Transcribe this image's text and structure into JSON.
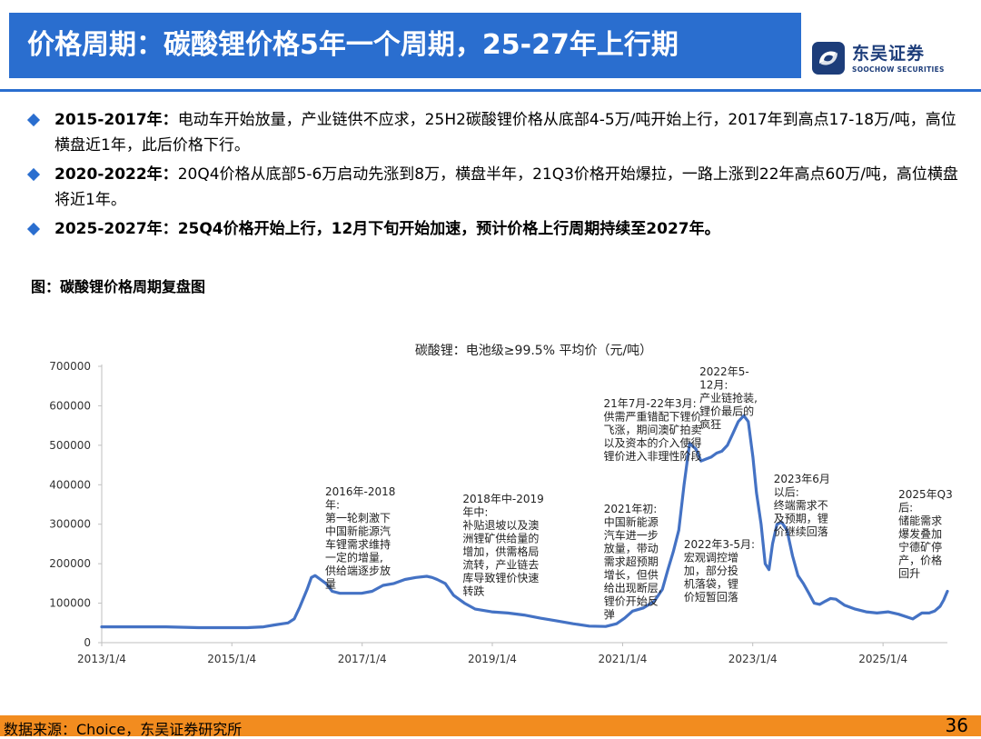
{
  "header": {
    "title": "价格周期：碳酸锂价格5年一个周期，25-27年上行期",
    "brand_cn": "东吴证券",
    "brand_en": "SOOCHOW SECURITIES",
    "accent": "#2a6ecf"
  },
  "bullets": [
    {
      "head": "2015-2017年：",
      "text": "电动车开始放量，产业链供不应求，25H2碳酸锂价格从底部4-5万/吨开始上行，2017年到高点17-18万/吨，高位横盘近1年，此后价格下行。"
    },
    {
      "head": "2020-2022年：",
      "text": "20Q4价格从底部5-6万启动先涨到8万，横盘半年，21Q3价格开始爆拉，一路上涨到22年高点60万/吨，高位横盘将近1年。"
    },
    {
      "head": "2025-2027年：",
      "text": "25Q4价格开始上行，12月下旬开始加速，预计价格上行周期持续至2027年。"
    }
  ],
  "figure_caption": "图：碳酸锂价格周期复盘图",
  "chart_data": {
    "type": "line",
    "title": "碳酸锂：电池级≥99.5% 平均价（元/吨）",
    "xlabel": "",
    "ylabel": "",
    "ylim": [
      0,
      700000
    ],
    "xlim": [
      "2013-01-04",
      "2025-12-31"
    ],
    "grid": false,
    "legend": "none",
    "line_color": "#4472c4",
    "yticks": [
      "0",
      "100000",
      "200000",
      "300000",
      "400000",
      "500000",
      "600000",
      "700000"
    ],
    "xticks": [
      "2013/1/4",
      "2015/1/4",
      "2017/1/4",
      "2019/1/4",
      "2021/1/4",
      "2023/1/4",
      "2025/1/4"
    ],
    "series": [
      {
        "x": [
          "2013-01-04",
          "2013-07-01",
          "2014-01-01",
          "2014-07-01",
          "2015-01-01",
          "2015-04-01",
          "2015-07-01",
          "2015-09-01",
          "2015-10-15",
          "2015-11-15",
          "2015-12-20",
          "2016-01-20",
          "2016-03-01",
          "2016-03-25",
          "2016-04-15",
          "2016-05-15",
          "2016-06-15",
          "2016-07-20",
          "2016-09-01",
          "2016-11-01",
          "2017-01-01",
          "2017-03-01",
          "2017-05-01",
          "2017-07-01",
          "2017-09-01",
          "2017-11-01",
          "2018-01-01",
          "2018-02-01",
          "2018-03-01",
          "2018-04-15",
          "2018-06-01",
          "2018-08-01",
          "2018-10-01",
          "2019-01-01",
          "2019-04-01",
          "2019-07-01",
          "2019-10-01",
          "2020-01-01",
          "2020-04-01",
          "2020-07-01",
          "2020-10-01",
          "2020-12-01",
          "2021-01-15",
          "2021-03-01",
          "2021-05-01",
          "2021-07-01",
          "2021-08-15",
          "2021-09-15",
          "2021-10-15",
          "2021-11-15",
          "2021-12-15",
          "2022-01-15",
          "2022-02-20",
          "2022-03-20",
          "2022-04-15",
          "2022-05-15",
          "2022-06-15",
          "2022-07-15",
          "2022-08-15",
          "2022-09-15",
          "2022-10-15",
          "2022-11-15",
          "2022-12-10",
          "2023-01-05",
          "2023-01-25",
          "2023-02-20",
          "2023-03-15",
          "2023-04-05",
          "2023-04-25",
          "2023-05-20",
          "2023-06-15",
          "2023-07-15",
          "2023-08-15",
          "2023-09-15",
          "2023-10-15",
          "2023-11-15",
          "2023-12-15",
          "2024-01-15",
          "2024-02-15",
          "2024-03-15",
          "2024-04-15",
          "2024-06-01",
          "2024-08-01",
          "2024-10-01",
          "2024-12-01",
          "2025-02-01",
          "2025-04-01",
          "2025-06-20",
          "2025-08-10",
          "2025-09-20",
          "2025-10-20",
          "2025-11-20",
          "2025-12-10",
          "2025-12-31"
        ],
        "y": [
          40000,
          40000,
          40000,
          38000,
          38000,
          38000,
          40000,
          45000,
          48000,
          50000,
          60000,
          90000,
          135000,
          165000,
          170000,
          160000,
          150000,
          130000,
          125000,
          125000,
          125000,
          130000,
          145000,
          150000,
          160000,
          165000,
          168000,
          165000,
          160000,
          150000,
          120000,
          100000,
          85000,
          78000,
          75000,
          70000,
          62000,
          55000,
          48000,
          42000,
          41000,
          48000,
          62000,
          80000,
          88000,
          105000,
          135000,
          185000,
          230000,
          285000,
          400000,
          505000,
          490000,
          460000,
          465000,
          470000,
          480000,
          485000,
          500000,
          530000,
          560000,
          575000,
          560000,
          470000,
          380000,
          300000,
          200000,
          185000,
          250000,
          300000,
          305000,
          285000,
          220000,
          170000,
          150000,
          125000,
          100000,
          97000,
          105000,
          112000,
          110000,
          95000,
          85000,
          78000,
          75000,
          78000,
          72000,
          60000,
          75000,
          75000,
          80000,
          92000,
          108000,
          130000
        ]
      }
    ],
    "annotations": [
      {
        "date": "2016-07-01",
        "text": "2016年-2018年：第一轮刺激下中国新能源汽车锂需求维持一定的增量，供给端逐步放量"
      },
      {
        "date": "2018-08-01",
        "text": "2018年中-2019年中：补贴退坡以及澳洲锂矿供给量的增加，供需格局流转，产业链去库导致锂价快速转跌"
      },
      {
        "date": "2020-12-01",
        "text": "2021年初：中国新能源汽车进一步放量，带动需求超预期增长，但供给出现断层，锂价开始反弹"
      },
      {
        "date": "2021-11-01",
        "text": "21年7月-22年3月：供需严重错配下锂价飞涨，期间澳矿拍卖以及资本的介入使得锂价进入非理性阶段"
      },
      {
        "date": "2022-09-01",
        "text": "2022年5-12月：产业链抢装，锂价最后的疯狂"
      },
      {
        "date": "2022-04-15",
        "text": "2022年3-5月：宏观调控增加，部分投机落袋，锂价短暂回落"
      },
      {
        "date": "2023-06-01",
        "text": "2023年6月以后：终端需求不及预期，锂价继续回落"
      },
      {
        "date": "2025-10-01",
        "text": "2025年Q3后：储能需求爆发叠加宁德矿停产，价格回升"
      }
    ]
  },
  "chart_annotations_lines": [
    [
      "2016年-2018",
      "年:",
      "第一轮刺激下",
      "中国新能源汽",
      "车锂需求维持",
      "一定的增量,",
      "供给端逐步放",
      "量"
    ],
    [
      "2018年中-2019",
      "年中:",
      "补贴退坡以及澳",
      "洲锂矿供给量的",
      "增加，供需格局",
      "流转，产业链去",
      "库导致锂价快速",
      "转跌"
    ],
    [
      "2021年初:",
      "中国新能源",
      "汽车进一步",
      "放量，带动",
      "需求超预期",
      "增长，但供",
      "给出现断层,",
      "锂价开始反",
      "弹"
    ],
    [
      "21年7月-22年3月:",
      "供需严重错配下锂价",
      "飞涨，期间澳矿拍卖",
      "以及资本的介入使得",
      "锂价进入非理性阶段"
    ],
    [
      "2022年5-",
      "12月:",
      "产业链抢装,",
      "锂价最后的",
      "疯狂"
    ],
    [
      "2022年3-5月:",
      "宏观调控增",
      "加，部分投",
      "机落袋，锂",
      "价短暂回落"
    ],
    [
      "2023年6月",
      "以后:",
      "终端需求不",
      "及预期，锂",
      "价继续回落"
    ],
    [
      "2025年Q3",
      "后:",
      "储能需求",
      "爆发叠加",
      "宁德矿停",
      "产，价格",
      "回升"
    ]
  ],
  "footer": {
    "source": "数据来源：Choice，东吴证券研究所",
    "page": "36",
    "bar_color": "#f28c1f"
  }
}
